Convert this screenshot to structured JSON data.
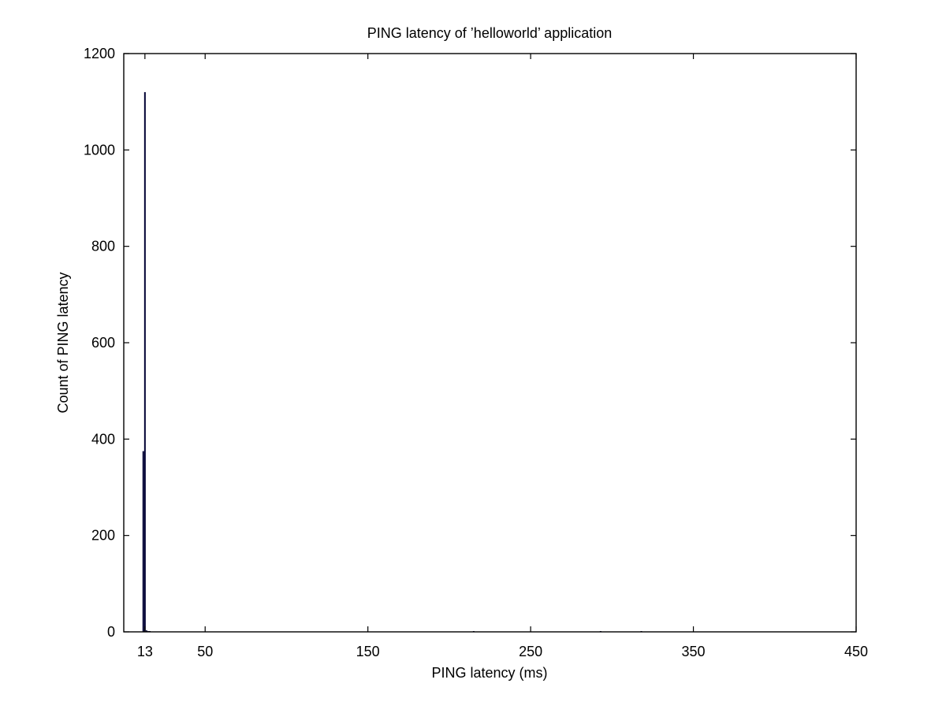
{
  "chart_data": {
    "type": "bar",
    "title": "PING latency of ’helloworld’ application",
    "xlabel": "PING latency (ms)",
    "ylabel": "Count of PING latency",
    "xlim": [
      0,
      450
    ],
    "ylim": [
      0,
      1200
    ],
    "xticks": [
      13,
      50,
      150,
      250,
      350,
      450
    ],
    "yticks": [
      0,
      200,
      400,
      600,
      800,
      1000,
      1200
    ],
    "grid": false,
    "legend": "none",
    "bar_color": "#000033",
    "bars": [
      {
        "x": 12,
        "value": 375
      },
      {
        "x": 13,
        "value": 1120
      },
      {
        "x": 14,
        "value": 3
      },
      {
        "x": 15,
        "value": 1
      },
      {
        "x": 16,
        "value": 1
      },
      {
        "x": 215,
        "value": 1
      },
      {
        "x": 293,
        "value": 1
      },
      {
        "x": 318,
        "value": 1
      }
    ]
  }
}
